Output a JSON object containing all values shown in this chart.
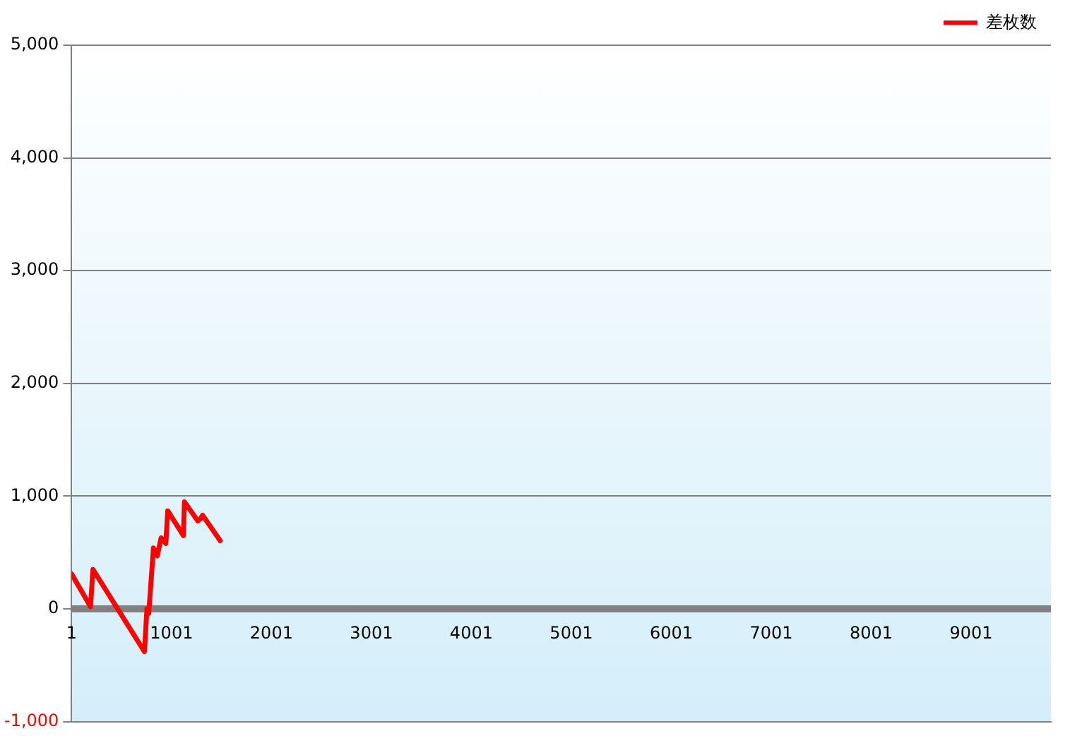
{
  "chart_data": {
    "type": "line",
    "x": [
      1,
      190,
      215,
      730,
      755,
      773,
      820,
      858,
      897,
      944,
      963,
      1120,
      1130,
      1264,
      1290,
      1312,
      1488
    ],
    "series": [
      {
        "name": "差枚数",
        "color": "#ff0000",
        "values": [
          310,
          20,
          350,
          -380,
          0,
          -40,
          540,
          470,
          630,
          580,
          870,
          650,
          950,
          780,
          800,
          830,
          605
        ]
      }
    ],
    "xlim": [
      1,
      9800
    ],
    "xticks": [
      1,
      1001,
      2001,
      3001,
      4001,
      5001,
      6001,
      7001,
      8001,
      9001
    ],
    "ylim": [
      -1000,
      5000
    ],
    "yticks": [
      {
        "value": -1000,
        "label": "-1,000"
      },
      0,
      {
        "value": 1000,
        "label": "1,000"
      },
      {
        "value": 2000,
        "label": "2,000"
      },
      {
        "value": 3000,
        "label": "3,000"
      },
      {
        "value": 4000,
        "label": "4,000"
      },
      {
        "value": 5000,
        "label": "5,000"
      }
    ],
    "grid": "y",
    "legend": "top right",
    "marker": "none",
    "line_style": "solid"
  }
}
